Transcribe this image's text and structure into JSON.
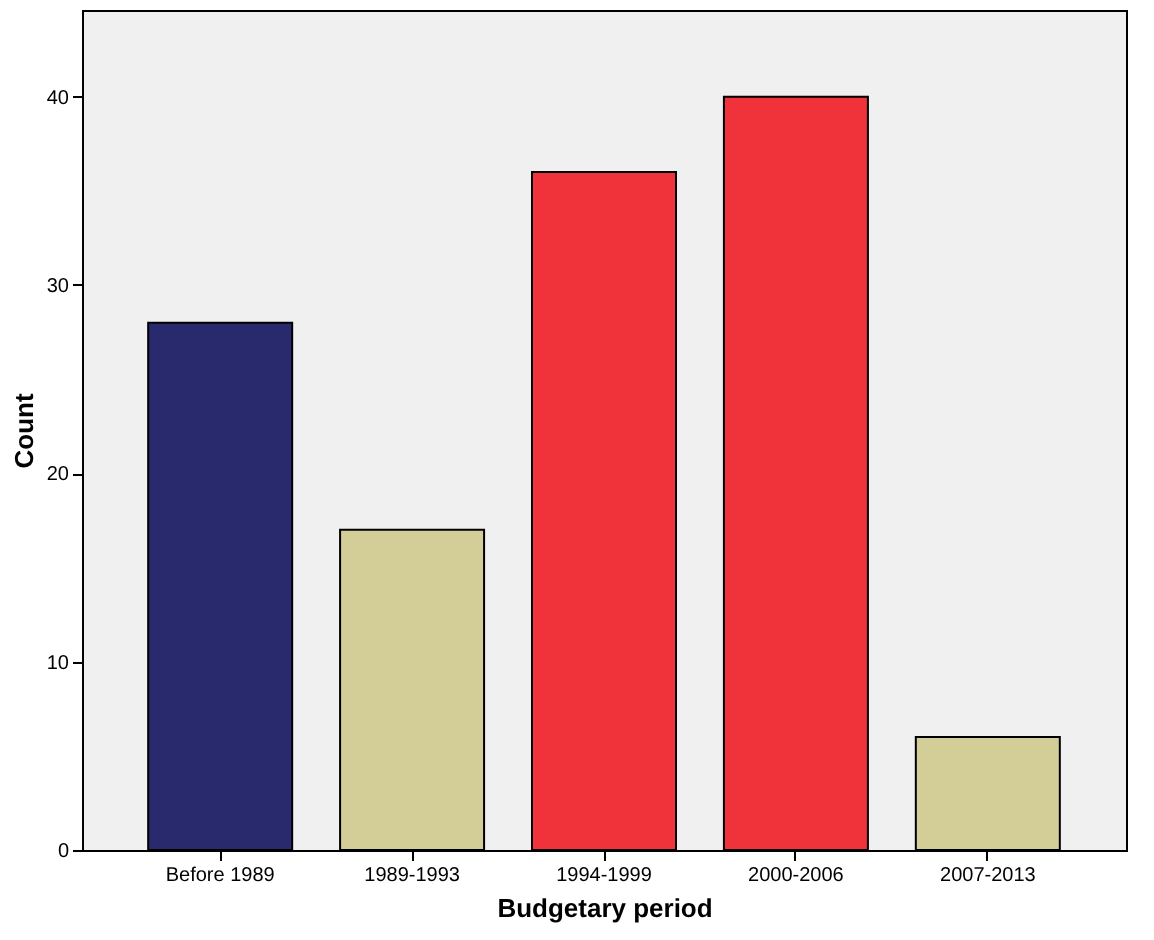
{
  "chart_data": {
    "type": "bar",
    "xlabel": "Budgetary period",
    "ylabel": "Count",
    "categories": [
      "Before 1989",
      "1989-1993",
      "1994-1999",
      "2000-2006",
      "2007-2013"
    ],
    "values": [
      28,
      17,
      36,
      40,
      6
    ],
    "colors": [
      "#29296e",
      "#d3ce97",
      "#f0323a",
      "#f0323a",
      "#d3ce97"
    ],
    "ylim": [
      0,
      44.6
    ],
    "yticks": [
      0,
      10,
      20,
      30,
      40
    ],
    "grid": false
  }
}
